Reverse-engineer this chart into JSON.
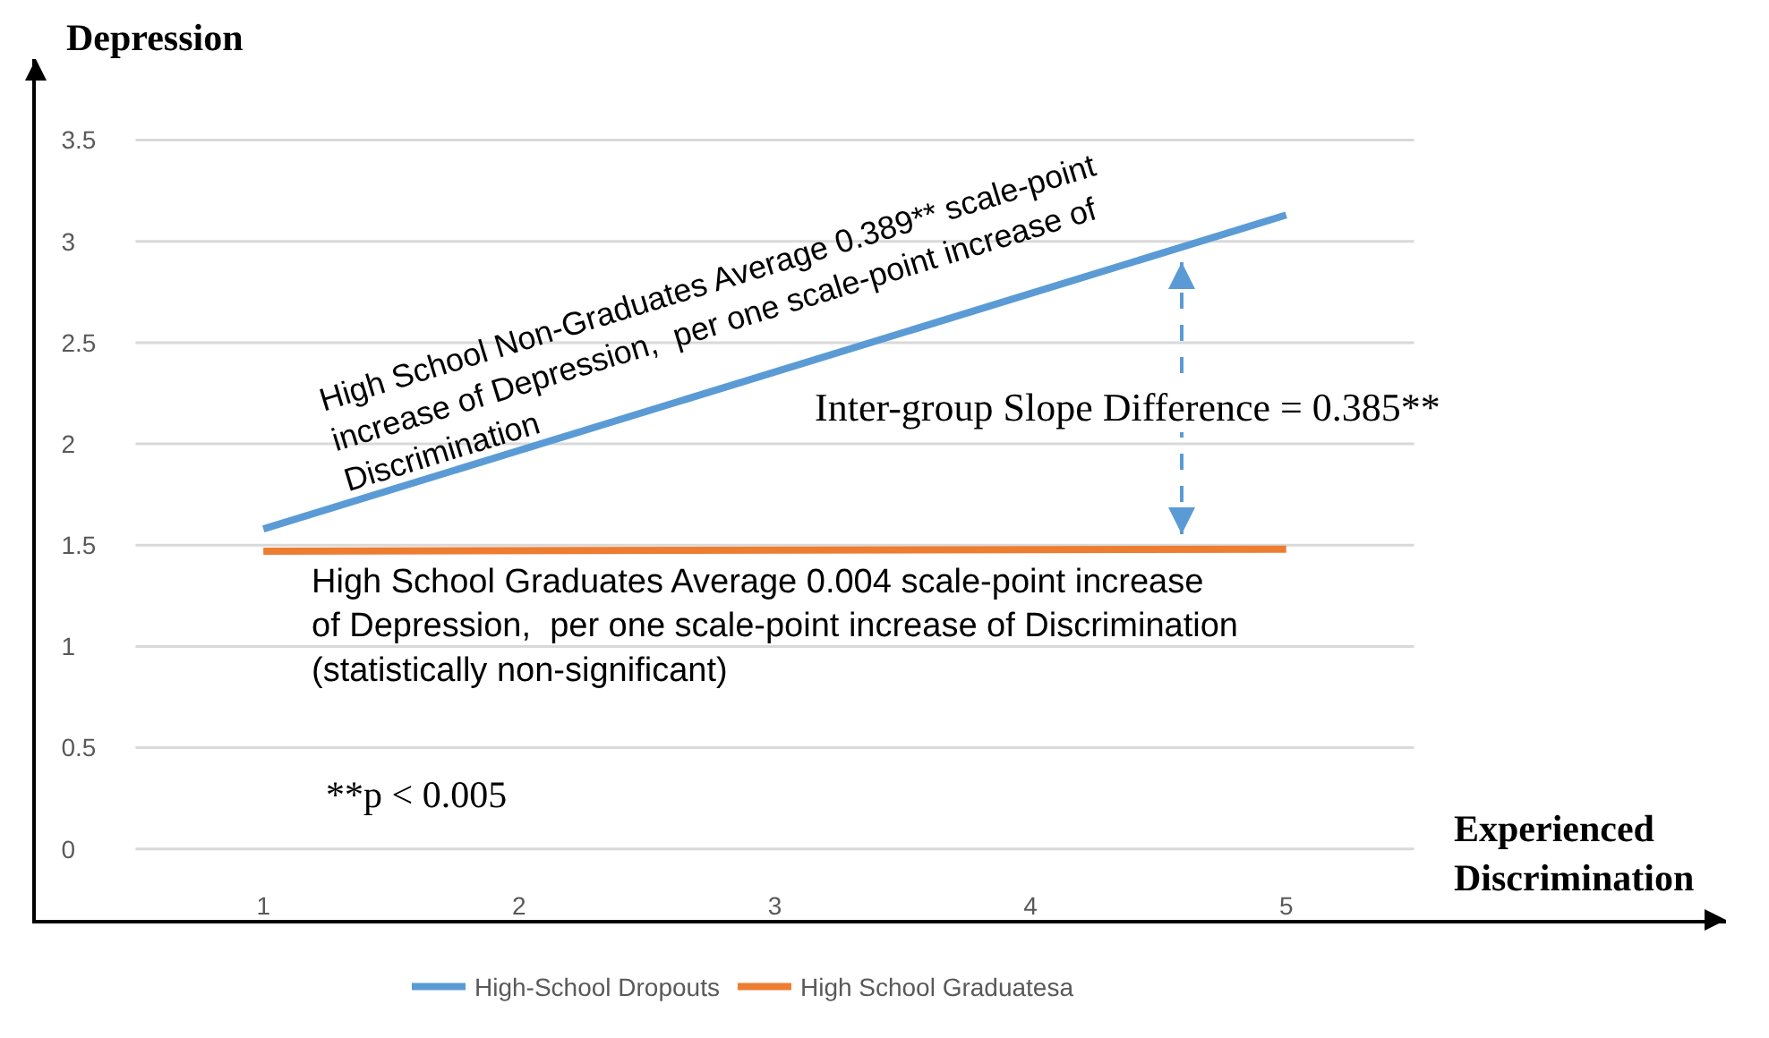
{
  "chart_data": {
    "type": "line",
    "xlabel": "Experienced\nDiscrimination",
    "ylabel": "Depression",
    "xlim": [
      0.11,
      6.72
    ],
    "xticks": [
      1,
      2,
      3,
      4,
      5
    ],
    "ylim": [
      -0.35,
      3.9
    ],
    "yticks": [
      0,
      0.5,
      1,
      1.5,
      2,
      2.5,
      3,
      3.5
    ],
    "x": [
      1,
      5
    ],
    "grid": "y",
    "legend": "bottom",
    "marker": "none",
    "line_style": "solid",
    "series": [
      {
        "name": "High-School Dropouts",
        "color": "#5b9bd5",
        "values": [
          1.58,
          3.13
        ]
      },
      {
        "name": "High School Graduatesa",
        "color": "#ed7d31",
        "values": [
          1.47,
          1.48
        ]
      }
    ],
    "annotations": [
      "High School Non-Graduates Average 0.389** scale-point\nincrease of Depression,  per one scale-point increase of\nDiscrimination",
      "High School Graduates Average 0.004 scale-point increase\nof Depression,  per one scale-point increase of Discrimination\n(statistically non-significant)",
      "Inter-group Slope Difference = 0.385**",
      "**p < 0.005"
    ]
  }
}
